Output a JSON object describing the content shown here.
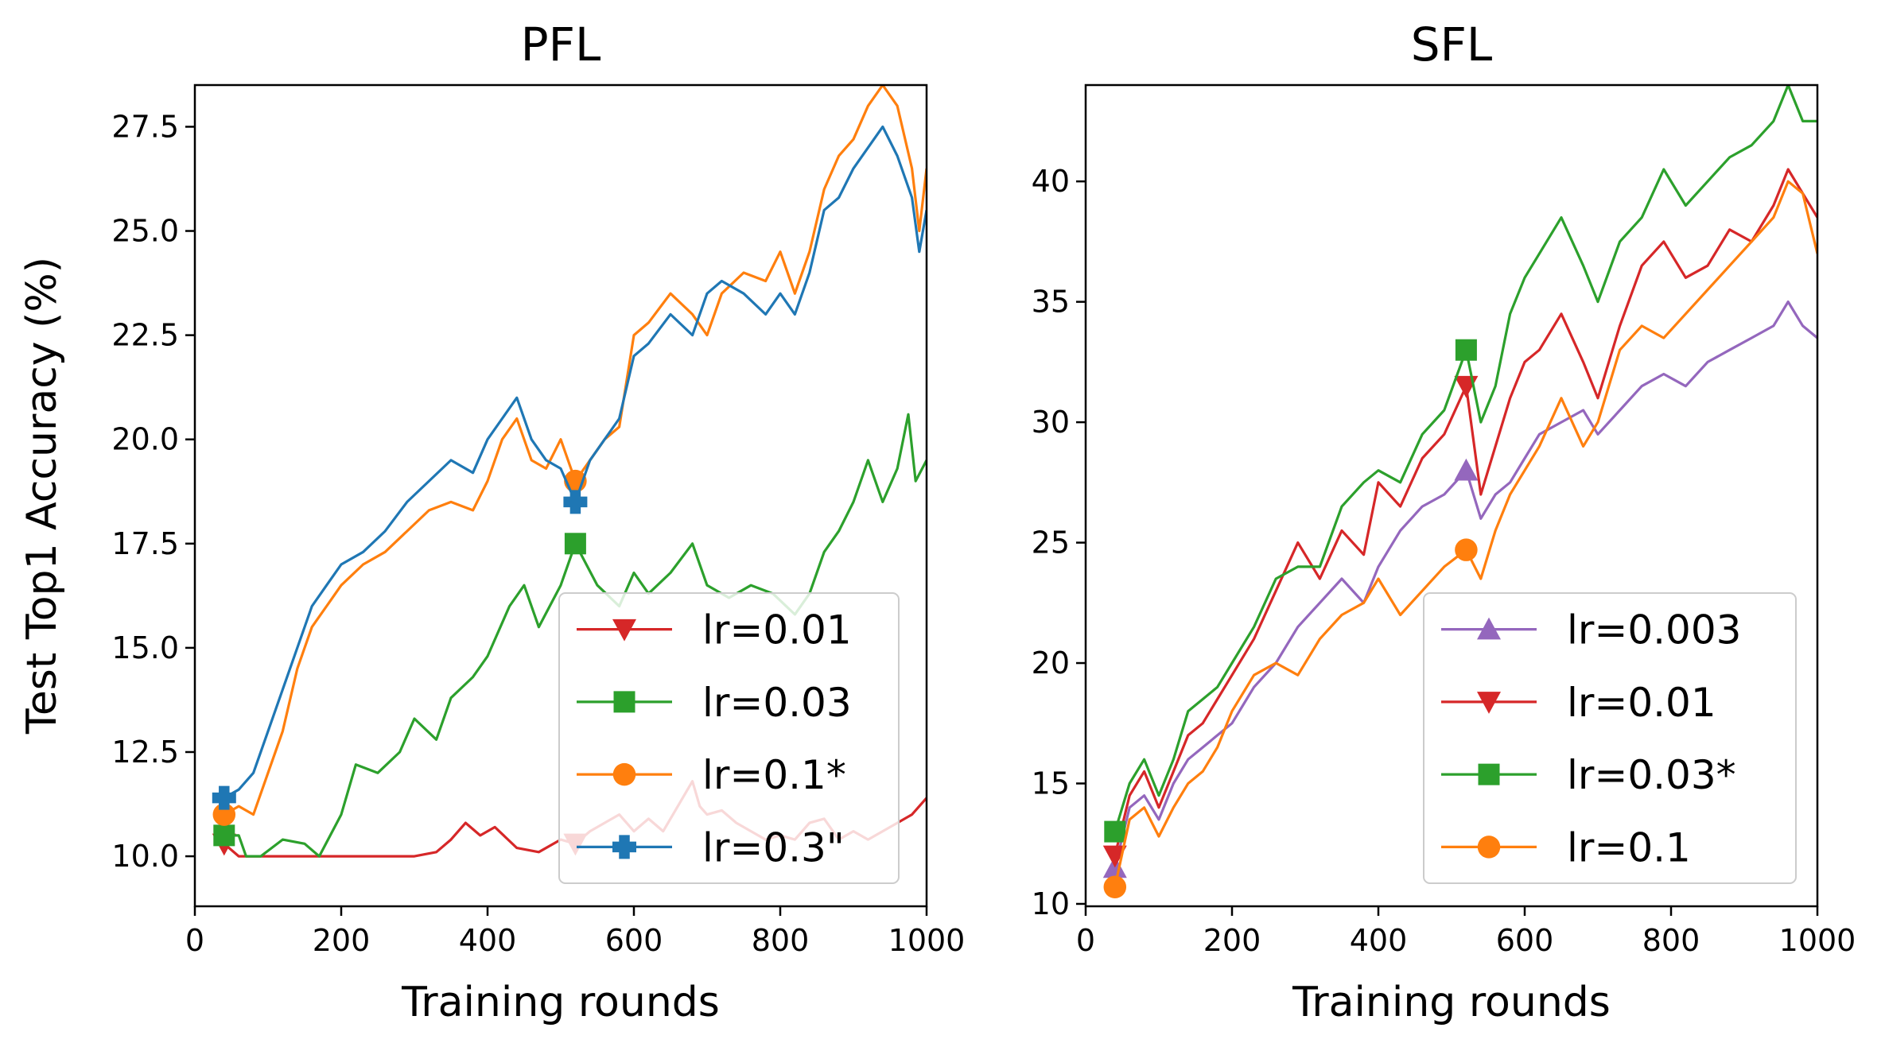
{
  "chart_data": [
    {
      "id": "pfl",
      "type": "line",
      "title": "PFL",
      "xlabel": "Training rounds",
      "ylabel": "Test Top1 Accuracy (%)",
      "xlim": [
        0,
        1000
      ],
      "ylim": [
        8.8,
        28.5
      ],
      "xticks": [
        0,
        200,
        400,
        600,
        800,
        1000
      ],
      "xtick_labels": [
        "0",
        "200",
        "400",
        "600",
        "800",
        "1000"
      ],
      "yticks": [
        10,
        12.5,
        15,
        17.5,
        20,
        22.5,
        25,
        27.5
      ],
      "ytick_labels": [
        "10.0",
        "12.5",
        "15.0",
        "17.5",
        "20.0",
        "22.5",
        "25.0",
        "27.5"
      ],
      "grid": false,
      "legend_position": "lower right",
      "series": [
        {
          "name": "lr=0.01",
          "color": "#d62728",
          "marker": "triangle-down",
          "x": [
            40,
            60,
            100,
            200,
            300,
            330,
            350,
            370,
            390,
            410,
            440,
            470,
            500,
            520,
            540,
            560,
            580,
            600,
            620,
            640,
            660,
            680,
            690,
            700,
            720,
            740,
            760,
            780,
            800,
            820,
            840,
            860,
            880,
            900,
            920,
            940,
            960,
            980,
            1000
          ],
          "y": [
            10.3,
            10.0,
            10.0,
            10.0,
            10.0,
            10.1,
            10.4,
            10.8,
            10.5,
            10.7,
            10.2,
            10.1,
            10.4,
            10.3,
            10.6,
            10.8,
            11.0,
            10.6,
            10.9,
            10.6,
            11.2,
            11.8,
            11.2,
            11.0,
            11.1,
            10.8,
            10.6,
            10.4,
            10.5,
            10.4,
            10.8,
            10.9,
            10.4,
            10.6,
            10.4,
            10.6,
            10.8,
            11.0,
            11.4
          ],
          "marker_x": [
            40,
            520
          ]
        },
        {
          "name": "lr=0.03",
          "color": "#2ca02c",
          "marker": "square",
          "x": [
            40,
            60,
            70,
            90,
            120,
            150,
            170,
            200,
            220,
            250,
            280,
            300,
            330,
            350,
            380,
            400,
            430,
            450,
            470,
            500,
            520,
            550,
            580,
            600,
            620,
            650,
            680,
            700,
            730,
            760,
            790,
            820,
            840,
            860,
            880,
            900,
            920,
            940,
            960,
            975,
            985,
            1000
          ],
          "y": [
            10.5,
            10.5,
            10.0,
            10.0,
            10.4,
            10.3,
            10.0,
            11.0,
            12.2,
            12.0,
            12.5,
            13.3,
            12.8,
            13.8,
            14.3,
            14.8,
            16.0,
            16.5,
            15.5,
            16.5,
            17.5,
            16.5,
            16.0,
            16.8,
            16.3,
            16.8,
            17.5,
            16.5,
            16.2,
            16.5,
            16.3,
            15.8,
            16.3,
            17.3,
            17.8,
            18.5,
            19.5,
            18.5,
            19.3,
            20.6,
            19.0,
            19.5
          ],
          "marker_x": [
            40,
            520
          ]
        },
        {
          "name": "lr=0.1*",
          "color": "#ff7f0e",
          "marker": "circle",
          "x": [
            40,
            60,
            80,
            100,
            120,
            140,
            160,
            180,
            200,
            230,
            260,
            290,
            320,
            350,
            380,
            400,
            420,
            440,
            460,
            480,
            500,
            520,
            540,
            560,
            580,
            600,
            620,
            650,
            680,
            700,
            720,
            750,
            780,
            800,
            820,
            840,
            860,
            880,
            900,
            920,
            940,
            960,
            980,
            990,
            1000
          ],
          "y": [
            11.0,
            11.2,
            11.0,
            12.0,
            13.0,
            14.5,
            15.5,
            16.0,
            16.5,
            17.0,
            17.3,
            17.8,
            18.3,
            18.5,
            18.3,
            19.0,
            20.0,
            20.5,
            19.5,
            19.3,
            20.0,
            19.0,
            19.5,
            20.0,
            20.3,
            22.5,
            22.8,
            23.5,
            23.0,
            22.5,
            23.5,
            24.0,
            23.8,
            24.5,
            23.5,
            24.5,
            26.0,
            26.8,
            27.2,
            28.0,
            28.5,
            28.0,
            26.5,
            25.0,
            26.5
          ],
          "marker_x": [
            40,
            520
          ]
        },
        {
          "name": "lr=0.3\"",
          "color": "#1f77b4",
          "marker": "plus",
          "x": [
            40,
            60,
            80,
            100,
            120,
            140,
            160,
            180,
            200,
            230,
            260,
            290,
            320,
            350,
            380,
            400,
            420,
            440,
            460,
            480,
            500,
            520,
            540,
            560,
            580,
            600,
            620,
            650,
            680,
            700,
            720,
            750,
            780,
            800,
            820,
            840,
            860,
            880,
            900,
            920,
            940,
            960,
            980,
            990,
            1000
          ],
          "y": [
            11.4,
            11.6,
            12.0,
            13.0,
            14.0,
            15.0,
            16.0,
            16.5,
            17.0,
            17.3,
            17.8,
            18.5,
            19.0,
            19.5,
            19.2,
            20.0,
            20.5,
            21.0,
            20.0,
            19.5,
            19.3,
            18.5,
            19.5,
            20.0,
            20.5,
            22.0,
            22.3,
            23.0,
            22.5,
            23.5,
            23.8,
            23.5,
            23.0,
            23.5,
            23.0,
            24.0,
            25.5,
            25.8,
            26.5,
            27.0,
            27.5,
            26.8,
            25.8,
            24.5,
            25.5
          ],
          "marker_x": [
            40,
            520
          ]
        }
      ]
    },
    {
      "id": "sfl",
      "type": "line",
      "title": "SFL",
      "xlabel": "Training rounds",
      "ylabel": "",
      "xlim": [
        0,
        1000
      ],
      "ylim": [
        9.9,
        44.0
      ],
      "xticks": [
        0,
        200,
        400,
        600,
        800,
        1000
      ],
      "xtick_labels": [
        "0",
        "200",
        "400",
        "600",
        "800",
        "1000"
      ],
      "yticks": [
        10,
        15,
        20,
        25,
        30,
        35,
        40
      ],
      "ytick_labels": [
        "10",
        "15",
        "20",
        "25",
        "30",
        "35",
        "40"
      ],
      "grid": false,
      "legend_position": "lower right",
      "series": [
        {
          "name": "lr=0.003",
          "color": "#9467bd",
          "marker": "triangle-up",
          "x": [
            40,
            60,
            80,
            100,
            120,
            140,
            160,
            180,
            200,
            230,
            260,
            290,
            320,
            350,
            380,
            400,
            430,
            460,
            490,
            520,
            540,
            560,
            580,
            600,
            620,
            650,
            680,
            700,
            730,
            760,
            790,
            820,
            850,
            880,
            910,
            940,
            960,
            980,
            1000
          ],
          "y": [
            11.5,
            14.0,
            14.5,
            13.5,
            15.0,
            16.0,
            16.5,
            17.0,
            17.5,
            19.0,
            20.0,
            21.5,
            22.5,
            23.5,
            22.5,
            24.0,
            25.5,
            26.5,
            27.0,
            28.0,
            26.0,
            27.0,
            27.5,
            28.5,
            29.5,
            30.0,
            30.5,
            29.5,
            30.5,
            31.5,
            32.0,
            31.5,
            32.5,
            33.0,
            33.5,
            34.0,
            35.0,
            34.0,
            33.5
          ],
          "marker_x": [
            40,
            520
          ]
        },
        {
          "name": "lr=0.01",
          "color": "#d62728",
          "marker": "triangle-down",
          "x": [
            40,
            60,
            80,
            100,
            120,
            140,
            160,
            180,
            200,
            230,
            260,
            290,
            320,
            350,
            380,
            400,
            430,
            460,
            490,
            520,
            540,
            560,
            580,
            600,
            620,
            650,
            680,
            700,
            730,
            760,
            790,
            820,
            850,
            880,
            910,
            940,
            960,
            980,
            1000
          ],
          "y": [
            12.0,
            14.5,
            15.5,
            14.0,
            15.5,
            17.0,
            17.5,
            18.5,
            19.5,
            21.0,
            23.0,
            25.0,
            23.5,
            25.5,
            24.5,
            27.5,
            26.5,
            28.5,
            29.5,
            31.5,
            27.0,
            29.0,
            31.0,
            32.5,
            33.0,
            34.5,
            32.5,
            31.0,
            34.0,
            36.5,
            37.5,
            36.0,
            36.5,
            38.0,
            37.5,
            39.0,
            40.5,
            39.5,
            38.5
          ],
          "marker_x": [
            40,
            520
          ]
        },
        {
          "name": "lr=0.03*",
          "color": "#2ca02c",
          "marker": "square",
          "x": [
            40,
            60,
            80,
            100,
            120,
            140,
            160,
            180,
            200,
            230,
            260,
            290,
            320,
            350,
            380,
            400,
            430,
            460,
            490,
            520,
            540,
            560,
            580,
            600,
            620,
            650,
            680,
            700,
            730,
            760,
            790,
            820,
            850,
            880,
            910,
            940,
            960,
            980,
            1000
          ],
          "y": [
            13.0,
            15.0,
            16.0,
            14.5,
            16.0,
            18.0,
            18.5,
            19.0,
            20.0,
            21.5,
            23.5,
            24.0,
            24.0,
            26.5,
            27.5,
            28.0,
            27.5,
            29.5,
            30.5,
            33.0,
            30.0,
            31.5,
            34.5,
            36.0,
            37.0,
            38.5,
            36.5,
            35.0,
            37.5,
            38.5,
            40.5,
            39.0,
            40.0,
            41.0,
            41.5,
            42.5,
            44.0,
            42.5,
            42.5
          ],
          "marker_x": [
            40,
            520
          ]
        },
        {
          "name": "lr=0.1",
          "color": "#ff7f0e",
          "marker": "circle",
          "x": [
            40,
            60,
            80,
            100,
            120,
            140,
            160,
            180,
            200,
            230,
            260,
            290,
            320,
            350,
            380,
            400,
            430,
            460,
            490,
            520,
            540,
            560,
            580,
            600,
            620,
            650,
            680,
            700,
            730,
            760,
            790,
            820,
            850,
            880,
            910,
            940,
            960,
            980,
            1000
          ],
          "y": [
            10.7,
            13.5,
            14.0,
            12.8,
            14.0,
            15.0,
            15.5,
            16.5,
            18.0,
            19.5,
            20.0,
            19.5,
            21.0,
            22.0,
            22.5,
            23.5,
            22.0,
            23.0,
            24.0,
            24.7,
            23.5,
            25.5,
            27.0,
            28.0,
            29.0,
            31.0,
            29.0,
            30.0,
            33.0,
            34.0,
            33.5,
            34.5,
            35.5,
            36.5,
            37.5,
            38.5,
            40.0,
            39.5,
            37.0
          ],
          "marker_x": [
            40,
            520
          ]
        }
      ]
    }
  ]
}
